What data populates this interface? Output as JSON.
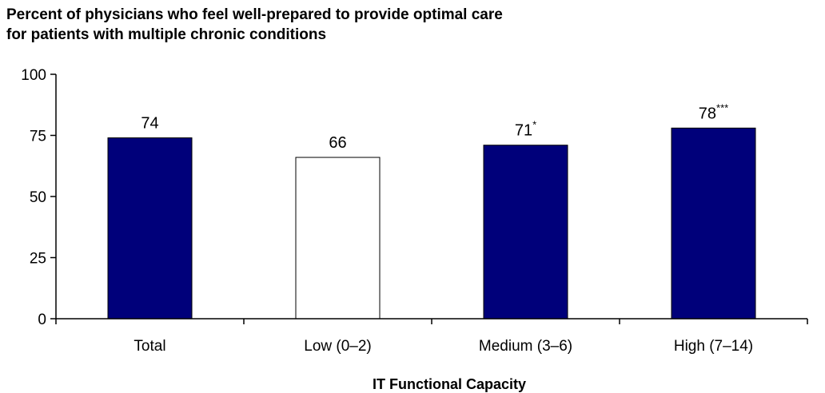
{
  "chart_data": {
    "type": "bar",
    "title_lines": [
      "Percent of physicians who feel well-prepared to provide optimal care",
      "for patients with multiple chronic conditions"
    ],
    "xlabel": "IT Functional Capacity",
    "ylabel": "",
    "ylim": [
      0,
      100
    ],
    "yticks": [
      "0",
      "25",
      "50",
      "75",
      "100"
    ],
    "categories": [
      "Total",
      "Low (0–2)",
      "Medium (3–6)",
      "High (7–14)"
    ],
    "values": [
      74,
      66,
      71,
      78
    ],
    "value_labels": [
      "74",
      "66",
      "71",
      "78"
    ],
    "significance_marks": [
      "",
      "",
      "*",
      "***"
    ],
    "bar_fills": [
      "#00007a",
      "#ffffff",
      "#00007a",
      "#00007a"
    ],
    "bar_stroke": "#000000",
    "grid": false,
    "legend": "none"
  }
}
